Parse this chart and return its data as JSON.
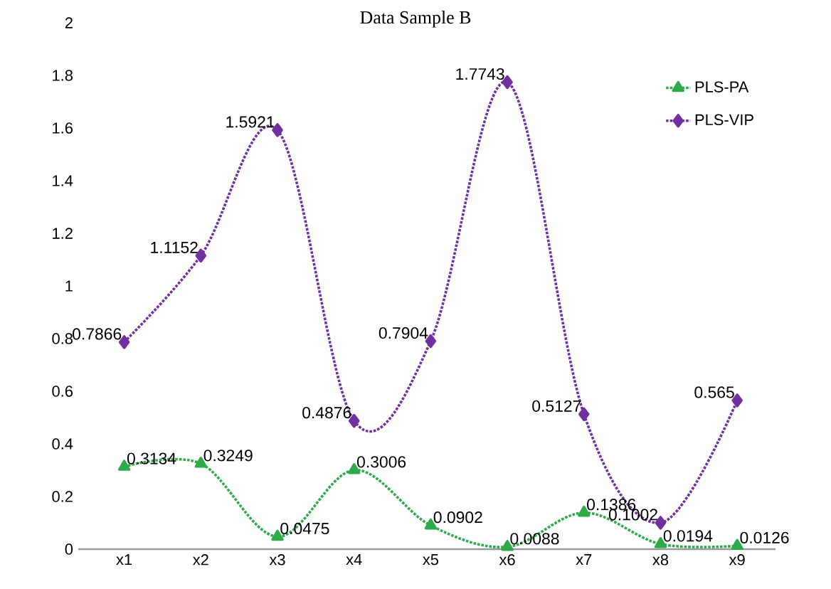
{
  "chart_data": {
    "type": "line",
    "title": "Data Sample B",
    "categories": [
      "x1",
      "x2",
      "x3",
      "x4",
      "x5",
      "x6",
      "x7",
      "x8",
      "x9"
    ],
    "series": [
      {
        "name": "PLS-PA",
        "color": "#2eaa4a",
        "marker": "triangle",
        "values": [
          0.3134,
          0.3249,
          0.0475,
          0.3006,
          0.0902,
          0.0088,
          0.1386,
          0.0194,
          0.0126
        ]
      },
      {
        "name": "PLS-VIP",
        "color": "#7030a0",
        "marker": "diamond",
        "values": [
          0.7866,
          1.1152,
          1.5921,
          0.4876,
          0.7904,
          1.7743,
          0.5127,
          0.1002,
          0.565
        ]
      }
    ],
    "ylim": [
      0,
      2
    ],
    "yticks": [
      0,
      0.2,
      0.4,
      0.6,
      0.8,
      1,
      1.2,
      1.4,
      1.6,
      1.8,
      2
    ],
    "line_style": "dotted",
    "data_labels": true,
    "legend": "top right",
    "grid": false
  }
}
